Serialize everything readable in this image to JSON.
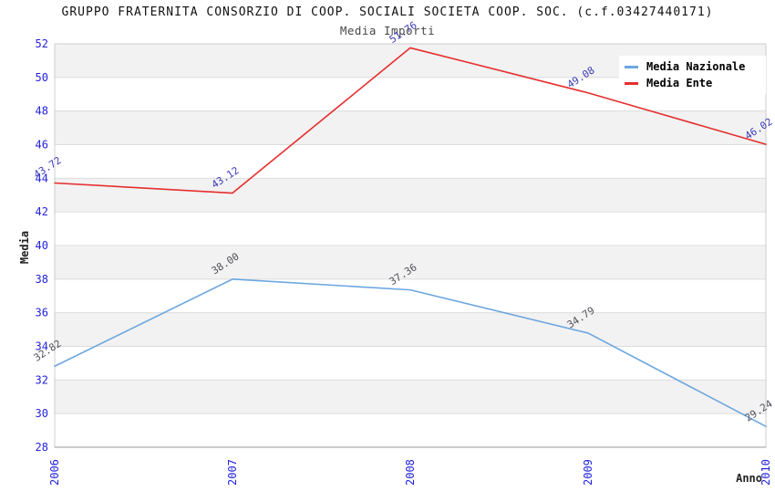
{
  "title": "GRUPPO FRATERNITA CONSORZIO DI COOP. SOCIALI SOCIETA COOP. SOC. (c.f.03427440171)",
  "subtitle": "Media Importi",
  "legend": {
    "items": [
      {
        "label": "Media Nazionale",
        "color": "#6ca6e0"
      },
      {
        "label": "Media Ente",
        "color": "#e62e2e"
      }
    ]
  },
  "chart_data": {
    "type": "line",
    "title": "GRUPPO FRATERNITA CONSORZIO DI COOP. SOCIALI SOCIETA COOP. SOC. (c.f.03427440171)",
    "subtitle": "Media Importi",
    "categories": [
      "2006",
      "2007",
      "2008",
      "2009",
      "2010"
    ],
    "series": [
      {
        "name": "Media Nazionale",
        "color": "#6ca6e0",
        "label_color": "#50505a",
        "values": [
          32.82,
          38.0,
          37.36,
          34.79,
          29.24
        ]
      },
      {
        "name": "Media Ente",
        "color": "#e62e2e",
        "label_color": "#3b3bb8",
        "values": [
          43.72,
          43.12,
          51.76,
          49.08,
          46.02
        ]
      }
    ],
    "xlabel": "Anno",
    "ylabel": "Media",
    "ylim": [
      28,
      52
    ],
    "ytick_step": 2,
    "grid": true,
    "legend_position": "top-right",
    "tick_color": "#2222dd",
    "band_color": "#f2f2f2",
    "grid_color": "#dcdcdc",
    "border_color": "#cccccc",
    "axis_line_color": "#999999"
  }
}
